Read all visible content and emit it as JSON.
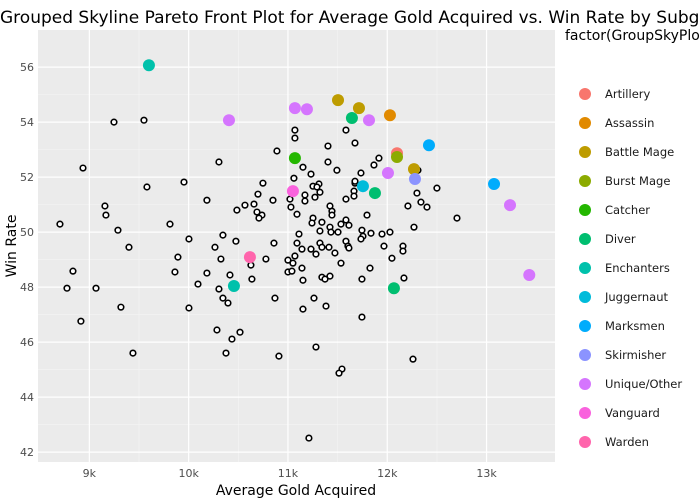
{
  "chart_data": {
    "type": "scatter",
    "title": "Grouped Skyline Pareto Front Plot for Average Gold Acquired vs. Win Rate by Subgroup",
    "xlabel": "Average Gold Acquired",
    "ylabel": "Win Rate",
    "xlim": [
      8483,
      13689
    ],
    "ylim": [
      41.64,
      57.35
    ],
    "grid": true,
    "x_ticks": [
      {
        "value": 9000,
        "label": "9k"
      },
      {
        "value": 10000,
        "label": "10k"
      },
      {
        "value": 11000,
        "label": "11k"
      },
      {
        "value": 12000,
        "label": "12k"
      },
      {
        "value": 13000,
        "label": "13k"
      }
    ],
    "y_ticks": [
      {
        "value": 42,
        "label": "42"
      },
      {
        "value": 44,
        "label": "44"
      },
      {
        "value": 46,
        "label": "46"
      },
      {
        "value": 48,
        "label": "48"
      },
      {
        "value": 50,
        "label": "50"
      },
      {
        "value": 52,
        "label": "52"
      },
      {
        "value": 54,
        "label": "54"
      },
      {
        "value": 56,
        "label": "56"
      }
    ],
    "legend": {
      "title": "factor(GroupSkyPlot",
      "position": "right",
      "entries": [
        {
          "name": "Artillery",
          "color": "#F8766D"
        },
        {
          "name": "Assassin",
          "color": "#E18A00"
        },
        {
          "name": "Battle Mage",
          "color": "#BE9C00"
        },
        {
          "name": "Burst Mage",
          "color": "#8CAB00"
        },
        {
          "name": "Catcher",
          "color": "#24B700"
        },
        {
          "name": "Diver",
          "color": "#00BE70"
        },
        {
          "name": "Enchanters",
          "color": "#00C1AB"
        },
        {
          "name": "Juggernaut",
          "color": "#00BBDA"
        },
        {
          "name": "Marksmen",
          "color": "#00ACFC"
        },
        {
          "name": "Skirmisher",
          "color": "#8B93FF"
        },
        {
          "name": "Unique/Other",
          "color": "#D575FE"
        },
        {
          "name": "Vanguard",
          "color": "#F962DD"
        },
        {
          "name": "Warden",
          "color": "#FF65AC"
        }
      ]
    },
    "skyline_points": [
      {
        "group": "Enchanters",
        "x": 9600,
        "y": 56.07
      },
      {
        "group": "Unique/Other",
        "x": 10406,
        "y": 54.07
      },
      {
        "group": "Unique/Other",
        "x": 11070,
        "y": 54.51
      },
      {
        "group": "Unique/Other",
        "x": 11191,
        "y": 54.47
      },
      {
        "group": "Battle Mage",
        "x": 11504,
        "y": 54.8
      },
      {
        "group": "Battle Mage",
        "x": 11715,
        "y": 54.51
      },
      {
        "group": "Diver",
        "x": 11644,
        "y": 54.15
      },
      {
        "group": "Unique/Other",
        "x": 11816,
        "y": 54.07
      },
      {
        "group": "Assassin",
        "x": 12027,
        "y": 54.25
      },
      {
        "group": "Marksmen",
        "x": 12420,
        "y": 53.16
      },
      {
        "group": "Artillery",
        "x": 12098,
        "y": 52.87
      },
      {
        "group": "Burst Mage",
        "x": 12098,
        "y": 52.73
      },
      {
        "group": "Catcher",
        "x": 11070,
        "y": 52.69
      },
      {
        "group": "Battle Mage",
        "x": 12269,
        "y": 52.29
      },
      {
        "group": "Skirmisher",
        "x": 12279,
        "y": 51.93
      },
      {
        "group": "Unique/Other",
        "x": 12007,
        "y": 52.15
      },
      {
        "group": "Juggernaut",
        "x": 11755,
        "y": 51.67
      },
      {
        "group": "Diver",
        "x": 11876,
        "y": 51.42
      },
      {
        "group": "Vanguard",
        "x": 11050,
        "y": 51.49
      },
      {
        "group": "Marksmen",
        "x": 13075,
        "y": 51.75
      },
      {
        "group": "Unique/Other",
        "x": 13236,
        "y": 50.98
      },
      {
        "group": "Warden",
        "x": 10617,
        "y": 49.09
      },
      {
        "group": "Enchanters",
        "x": 10456,
        "y": 48.04
      },
      {
        "group": "Diver",
        "x": 12067,
        "y": 47.96
      },
      {
        "group": "Unique/Other",
        "x": 13430,
        "y": 48.44
      }
    ],
    "all_points": [
      [
        9248,
        54.0
      ],
      [
        9550,
        54.07
      ],
      [
        8936,
        52.33
      ],
      [
        10305,
        52.55
      ],
      [
        9953,
        51.82
      ],
      [
        9580,
        51.64
      ],
      [
        10184,
        51.16
      ],
      [
        9157,
        50.95
      ],
      [
        9167,
        50.62
      ],
      [
        8704,
        50.29
      ],
      [
        10486,
        50.8
      ],
      [
        9812,
        50.29
      ],
      [
        9288,
        50.07
      ],
      [
        10003,
        49.75
      ],
      [
        10345,
        49.89
      ],
      [
        10476,
        49.67
      ],
      [
        10265,
        49.45
      ],
      [
        9399,
        49.45
      ],
      [
        9892,
        49.09
      ],
      [
        8835,
        48.58
      ],
      [
        8775,
        47.96
      ],
      [
        9067,
        47.96
      ],
      [
        9862,
        48.55
      ],
      [
        10094,
        48.11
      ],
      [
        10184,
        48.51
      ],
      [
        10325,
        49.02
      ],
      [
        10416,
        48.44
      ],
      [
        10305,
        47.93
      ],
      [
        10345,
        47.6
      ],
      [
        10396,
        47.42
      ],
      [
        9318,
        47.27
      ],
      [
        10003,
        47.24
      ],
      [
        8915,
        46.76
      ],
      [
        10285,
        46.44
      ],
      [
        10517,
        46.36
      ],
      [
        10436,
        46.11
      ],
      [
        10376,
        45.6
      ],
      [
        9439,
        45.6
      ],
      [
        10869,
        47.6
      ],
      [
        11151,
        47.2
      ],
      [
        11262,
        47.6
      ],
      [
        11383,
        47.31
      ],
      [
        11745,
        46.91
      ],
      [
        10909,
        45.49
      ],
      [
        11282,
        45.82
      ],
      [
        11544,
        45.02
      ],
      [
        11514,
        44.87
      ],
      [
        12259,
        45.38
      ],
      [
        11211,
        42.51
      ],
      [
        10748,
        51.78
      ],
      [
        11252,
        51.67
      ],
      [
        11312,
        51.75
      ],
      [
        11292,
        51.64
      ],
      [
        11322,
        51.45
      ],
      [
        11675,
        51.78
      ],
      [
        11665,
        51.49
      ],
      [
        11665,
        51.31
      ],
      [
        11584,
        51.2
      ],
      [
        10698,
        51.38
      ],
      [
        10849,
        51.16
      ],
      [
        11020,
        51.2
      ],
      [
        11171,
        51.35
      ],
      [
        11171,
        51.13
      ],
      [
        11272,
        51.27
      ],
      [
        10567,
        50.98
      ],
      [
        10658,
        51.02
      ],
      [
        10688,
        50.73
      ],
      [
        10738,
        50.62
      ],
      [
        10708,
        50.51
      ],
      [
        11030,
        50.91
      ],
      [
        11091,
        50.65
      ],
      [
        11423,
        50.95
      ],
      [
        11443,
        50.76
      ],
      [
        11443,
        50.62
      ],
      [
        11796,
        50.62
      ],
      [
        12299,
        51.42
      ],
      [
        12208,
        50.95
      ],
      [
        12339,
        51.09
      ],
      [
        12400,
        50.91
      ],
      [
        12269,
        50.18
      ],
      [
        11252,
        50.51
      ],
      [
        11342,
        50.36
      ],
      [
        11242,
        50.33
      ],
      [
        11423,
        50.18
      ],
      [
        11534,
        50.29
      ],
      [
        11584,
        50.44
      ],
      [
        11614,
        50.25
      ],
      [
        11111,
        49.93
      ],
      [
        11322,
        50.04
      ],
      [
        11433,
        50.0
      ],
      [
        11504,
        50.0
      ],
      [
        11745,
        50.07
      ],
      [
        11836,
        49.96
      ],
      [
        11755,
        49.85
      ],
      [
        11735,
        49.75
      ],
      [
        11947,
        49.93
      ],
      [
        12027,
        50.0
      ],
      [
        10859,
        49.6
      ],
      [
        11091,
        49.6
      ],
      [
        11322,
        49.6
      ],
      [
        11584,
        49.67
      ],
      [
        11604,
        49.49
      ],
      [
        11614,
        49.42
      ],
      [
        11967,
        49.49
      ],
      [
        12158,
        49.49
      ],
      [
        12158,
        49.31
      ],
      [
        11141,
        49.38
      ],
      [
        11232,
        49.38
      ],
      [
        11282,
        49.2
      ],
      [
        11342,
        49.45
      ],
      [
        11413,
        49.45
      ],
      [
        11473,
        49.24
      ],
      [
        11070,
        49.13
      ],
      [
        11000,
        48.98
      ],
      [
        10778,
        49.02
      ],
      [
        11050,
        48.87
      ],
      [
        12047,
        49.05
      ],
      [
        11534,
        48.87
      ],
      [
        10627,
        48.8
      ],
      [
        11826,
        48.69
      ],
      [
        11141,
        48.69
      ],
      [
        11000,
        48.55
      ],
      [
        11040,
        48.58
      ],
      [
        10637,
        48.29
      ],
      [
        11151,
        48.25
      ],
      [
        11342,
        48.36
      ],
      [
        11373,
        48.29
      ],
      [
        11423,
        48.4
      ],
      [
        11745,
        48.29
      ],
      [
        12168,
        48.33
      ],
      [
        11070,
        53.71
      ],
      [
        11070,
        53.42
      ],
      [
        11584,
        53.71
      ],
      [
        10889,
        52.95
      ],
      [
        11403,
        53.13
      ],
      [
        11675,
        53.24
      ],
      [
        11403,
        52.55
      ],
      [
        11493,
        52.25
      ],
      [
        11151,
        52.36
      ],
      [
        11232,
        52.11
      ],
      [
        11060,
        51.96
      ],
      [
        11735,
        52.15
      ],
      [
        11916,
        52.69
      ],
      [
        11866,
        52.44
      ],
      [
        11675,
        51.85
      ],
      [
        12500,
        51.6
      ],
      [
        12309,
        52.25
      ],
      [
        12702,
        50.51
      ]
    ]
  }
}
